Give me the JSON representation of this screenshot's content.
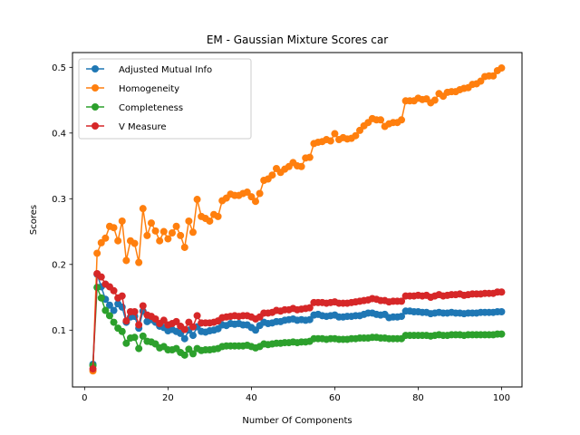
{
  "chart_data": {
    "type": "line",
    "title": "EM - Gaussian Mixture Scores car",
    "xlabel": "Number Of Components",
    "ylabel": "Scores",
    "xlim": [
      -2.9,
      104.9
    ],
    "ylim": [
      0.0135,
      0.5225
    ],
    "xticks": [
      0,
      20,
      40,
      60,
      80,
      100
    ],
    "yticks": [
      0.1,
      0.2,
      0.3,
      0.4,
      0.5
    ],
    "x_start": 2,
    "grid": false,
    "legend_position": "upper-left",
    "series": [
      {
        "name": "Adjusted Mutual Info",
        "color": "#1f77b4",
        "values": [
          0.048,
          0.185,
          0.166,
          0.147,
          0.138,
          0.13,
          0.14,
          0.135,
          0.112,
          0.12,
          0.121,
          0.103,
          0.129,
          0.113,
          0.116,
          0.112,
          0.106,
          0.104,
          0.099,
          0.101,
          0.098,
          0.095,
          0.087,
          0.1,
          0.092,
          0.105,
          0.098,
          0.097,
          0.099,
          0.1,
          0.102,
          0.108,
          0.107,
          0.11,
          0.109,
          0.11,
          0.108,
          0.108,
          0.104,
          0.1,
          0.107,
          0.112,
          0.11,
          0.111,
          0.113,
          0.113,
          0.115,
          0.116,
          0.117,
          0.115,
          0.116,
          0.115,
          0.116,
          0.123,
          0.124,
          0.122,
          0.121,
          0.122,
          0.123,
          0.12,
          0.12,
          0.121,
          0.121,
          0.122,
          0.122,
          0.124,
          0.126,
          0.126,
          0.124,
          0.123,
          0.124,
          0.119,
          0.12,
          0.12,
          0.121,
          0.129,
          0.129,
          0.128,
          0.128,
          0.127,
          0.127,
          0.125,
          0.126,
          0.127,
          0.126,
          0.126,
          0.127,
          0.126,
          0.126,
          0.125,
          0.126,
          0.126,
          0.126,
          0.127,
          0.127,
          0.127,
          0.127,
          0.128,
          0.128
        ]
      },
      {
        "name": "Homogeneity",
        "color": "#ff7f0e",
        "values": [
          0.038,
          0.217,
          0.233,
          0.24,
          0.258,
          0.256,
          0.236,
          0.266,
          0.206,
          0.236,
          0.232,
          0.203,
          0.285,
          0.244,
          0.263,
          0.251,
          0.236,
          0.25,
          0.239,
          0.248,
          0.258,
          0.244,
          0.226,
          0.266,
          0.249,
          0.299,
          0.273,
          0.27,
          0.266,
          0.276,
          0.273,
          0.297,
          0.301,
          0.307,
          0.305,
          0.305,
          0.308,
          0.31,
          0.303,
          0.296,
          0.308,
          0.328,
          0.33,
          0.336,
          0.346,
          0.34,
          0.345,
          0.349,
          0.355,
          0.35,
          0.349,
          0.362,
          0.363,
          0.384,
          0.386,
          0.387,
          0.39,
          0.388,
          0.399,
          0.39,
          0.393,
          0.391,
          0.392,
          0.396,
          0.404,
          0.411,
          0.416,
          0.422,
          0.42,
          0.42,
          0.41,
          0.414,
          0.416,
          0.416,
          0.42,
          0.449,
          0.449,
          0.449,
          0.453,
          0.451,
          0.452,
          0.446,
          0.45,
          0.46,
          0.456,
          0.462,
          0.463,
          0.463,
          0.466,
          0.468,
          0.469,
          0.474,
          0.475,
          0.479,
          0.486,
          0.487,
          0.487,
          0.495,
          0.499
        ]
      },
      {
        "name": "Completeness",
        "color": "#2ca02c",
        "values": [
          0.046,
          0.165,
          0.149,
          0.13,
          0.122,
          0.112,
          0.103,
          0.098,
          0.08,
          0.088,
          0.089,
          0.072,
          0.091,
          0.083,
          0.082,
          0.079,
          0.073,
          0.075,
          0.07,
          0.07,
          0.072,
          0.066,
          0.062,
          0.071,
          0.064,
          0.072,
          0.069,
          0.07,
          0.07,
          0.071,
          0.072,
          0.075,
          0.076,
          0.076,
          0.076,
          0.076,
          0.076,
          0.077,
          0.075,
          0.073,
          0.075,
          0.079,
          0.078,
          0.079,
          0.08,
          0.08,
          0.081,
          0.081,
          0.082,
          0.081,
          0.082,
          0.082,
          0.083,
          0.087,
          0.087,
          0.087,
          0.086,
          0.087,
          0.087,
          0.086,
          0.086,
          0.086,
          0.087,
          0.087,
          0.088,
          0.088,
          0.088,
          0.089,
          0.089,
          0.088,
          0.088,
          0.087,
          0.087,
          0.087,
          0.087,
          0.092,
          0.092,
          0.092,
          0.092,
          0.092,
          0.092,
          0.091,
          0.092,
          0.093,
          0.092,
          0.092,
          0.093,
          0.093,
          0.093,
          0.092,
          0.093,
          0.093,
          0.093,
          0.093,
          0.093,
          0.093,
          0.093,
          0.094,
          0.094
        ]
      },
      {
        "name": "V Measure",
        "color": "#d62728",
        "values": [
          0.041,
          0.186,
          0.181,
          0.17,
          0.166,
          0.16,
          0.149,
          0.152,
          0.114,
          0.128,
          0.128,
          0.108,
          0.137,
          0.123,
          0.121,
          0.117,
          0.11,
          0.115,
          0.108,
          0.11,
          0.113,
          0.106,
          0.101,
          0.112,
          0.105,
          0.122,
          0.111,
          0.111,
          0.111,
          0.112,
          0.114,
          0.119,
          0.12,
          0.121,
          0.122,
          0.121,
          0.122,
          0.122,
          0.12,
          0.117,
          0.12,
          0.126,
          0.126,
          0.127,
          0.13,
          0.129,
          0.131,
          0.131,
          0.133,
          0.131,
          0.132,
          0.133,
          0.134,
          0.142,
          0.142,
          0.142,
          0.141,
          0.142,
          0.143,
          0.141,
          0.141,
          0.141,
          0.142,
          0.143,
          0.144,
          0.145,
          0.146,
          0.148,
          0.147,
          0.145,
          0.145,
          0.143,
          0.144,
          0.144,
          0.144,
          0.152,
          0.152,
          0.152,
          0.153,
          0.152,
          0.153,
          0.15,
          0.152,
          0.154,
          0.152,
          0.153,
          0.154,
          0.154,
          0.155,
          0.153,
          0.154,
          0.155,
          0.155,
          0.155,
          0.156,
          0.156,
          0.156,
          0.158,
          0.158
        ]
      }
    ]
  }
}
